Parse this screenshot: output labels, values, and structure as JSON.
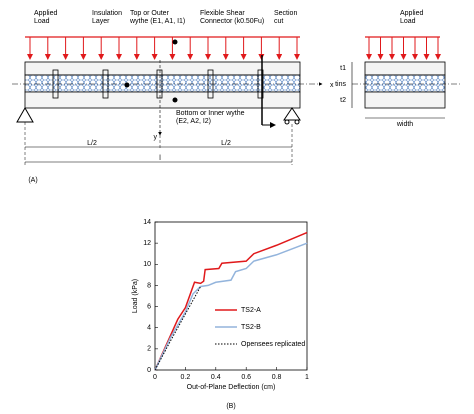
{
  "diagram": {
    "applied_load": "Applied Load",
    "insulation": "Insulation Layer",
    "top_wythe": "Top or Outer wythe (E1, A1, I1)",
    "connector": "Flexible Shear Connector (k0.50Fu)",
    "section_cut": "Section cut",
    "bottom_wythe": "Bottom or Inner wythe (E2, A2, I2)",
    "x_axis": "x",
    "y_axis": "y",
    "half_span_left": "L/2",
    "half_span_right": "L/2",
    "span": "l",
    "section_load": "Applied Load",
    "width": "width",
    "t1": "t1",
    "tins": "tins",
    "t2": "t2",
    "panel": "(A)"
  },
  "chart_data": {
    "type": "line",
    "panel": "(B)",
    "x_label": "Out-of-Plane Deflection (cm)",
    "y_label": "Load (kPa)",
    "xlim": [
      0,
      1
    ],
    "ylim": [
      0,
      14
    ],
    "xticks": [
      0,
      0.2,
      0.4,
      0.6,
      0.8,
      1
    ],
    "yticks": [
      0,
      2,
      4,
      6,
      8,
      10,
      12,
      14
    ],
    "legend": "lower right",
    "series": [
      {
        "name": "TS2-A",
        "color": "#e0191b",
        "dash": "solid",
        "x": [
          0,
          0.05,
          0.1,
          0.15,
          0.2,
          0.26,
          0.3,
          0.32,
          0.33,
          0.42,
          0.44,
          0.6,
          0.65,
          0.8,
          1.0
        ],
        "values": [
          0,
          1.6,
          3.2,
          4.8,
          5.9,
          8.3,
          8.2,
          8.4,
          9.5,
          9.6,
          10.1,
          10.3,
          11.0,
          11.8,
          13.0
        ]
      },
      {
        "name": "TS2-B",
        "color": "#93b4dc",
        "dash": "solid",
        "x": [
          0,
          0.1,
          0.2,
          0.25,
          0.3,
          0.35,
          0.4,
          0.5,
          0.53,
          0.6,
          0.65,
          0.8,
          1.0
        ],
        "values": [
          0,
          3.0,
          5.5,
          7.2,
          7.9,
          8.0,
          8.3,
          8.5,
          9.3,
          9.6,
          10.3,
          10.9,
          12.0
        ]
      },
      {
        "name": "Opensees replicated",
        "color": "#000000",
        "dash": "dotted",
        "x": [
          0,
          0.1,
          0.2,
          0.3
        ],
        "values": [
          0,
          2.7,
          5.3,
          7.9
        ]
      }
    ]
  }
}
